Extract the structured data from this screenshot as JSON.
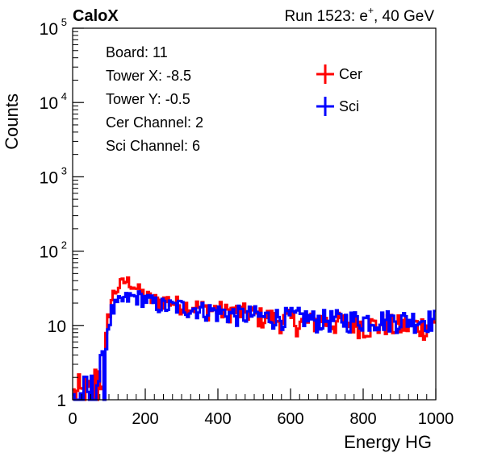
{
  "header": {
    "experiment": "CaloX",
    "run_info": "Run 1523: e",
    "run_info_sup": "+",
    "run_info_tail": ", 40 GeV"
  },
  "info_box": {
    "lines": [
      "Board: 11",
      "Tower X: -8.5",
      "Tower Y: -0.5",
      "Cer Channel: 2",
      "Sci Channel: 6"
    ]
  },
  "colors": {
    "cer": "#ff0000",
    "sci": "#0000ff",
    "axis": "#000000"
  },
  "chart_data": {
    "type": "line",
    "xlabel": "Energy HG",
    "ylabel": "Counts",
    "xlim": [
      0,
      1000
    ],
    "ylim": [
      1,
      100000
    ],
    "yscale": "log",
    "x_ticks": [
      "0",
      "200",
      "400",
      "600",
      "800",
      "1000"
    ],
    "y_ticks": [
      {
        "base": "1",
        "exp": ""
      },
      {
        "base": "10",
        "exp": ""
      },
      {
        "base": "10",
        "exp": "2"
      },
      {
        "base": "10",
        "exp": "3"
      },
      {
        "base": "10",
        "exp": "4"
      },
      {
        "base": "10",
        "exp": "5"
      }
    ],
    "legend_position": "top-right",
    "bin_width": 5,
    "series": [
      {
        "name": "Cer",
        "color": "#ff0000",
        "x": [
          0,
          50,
          90,
          100,
          110,
          120,
          130,
          140,
          150,
          160,
          170,
          180,
          200,
          220,
          240,
          260,
          280,
          300,
          320,
          340,
          360,
          380,
          400,
          420,
          440,
          460,
          480,
          500,
          520,
          540,
          560,
          580,
          600,
          620,
          640,
          660,
          680,
          700,
          720,
          740,
          760,
          780,
          800,
          820,
          840,
          860,
          880,
          900,
          920,
          940,
          960,
          980,
          1000
        ],
        "y": [
          1,
          1,
          3,
          14,
          25,
          30,
          35,
          38,
          40,
          37,
          34,
          30,
          25,
          22,
          21,
          22,
          20,
          19,
          18,
          18,
          17,
          16,
          17,
          15,
          16,
          15,
          15,
          14,
          13,
          13,
          12,
          12,
          12,
          11,
          11,
          11,
          12,
          11,
          11,
          11,
          11,
          11,
          10,
          10,
          10,
          11,
          10,
          10,
          10,
          10,
          10,
          10,
          10
        ]
      },
      {
        "name": "Sci",
        "color": "#0000ff",
        "x": [
          0,
          50,
          90,
          100,
          110,
          120,
          130,
          140,
          150,
          160,
          170,
          180,
          200,
          220,
          240,
          260,
          280,
          300,
          320,
          340,
          360,
          380,
          400,
          420,
          440,
          460,
          480,
          500,
          520,
          540,
          560,
          580,
          600,
          620,
          640,
          660,
          680,
          700,
          720,
          740,
          760,
          780,
          800,
          820,
          840,
          860,
          880,
          900,
          920,
          940,
          960,
          980,
          1000
        ],
        "y": [
          1,
          1,
          3,
          12,
          16,
          18,
          20,
          22,
          23,
          24,
          24,
          24,
          23,
          20,
          19,
          18,
          18,
          18,
          17,
          17,
          16,
          16,
          15,
          15,
          14,
          14,
          14,
          14,
          13,
          13,
          13,
          13,
          13,
          13,
          13,
          12,
          12,
          12,
          12,
          12,
          12,
          12,
          12,
          12,
          12,
          12,
          12,
          12,
          12,
          12,
          12,
          12,
          12
        ]
      }
    ]
  }
}
